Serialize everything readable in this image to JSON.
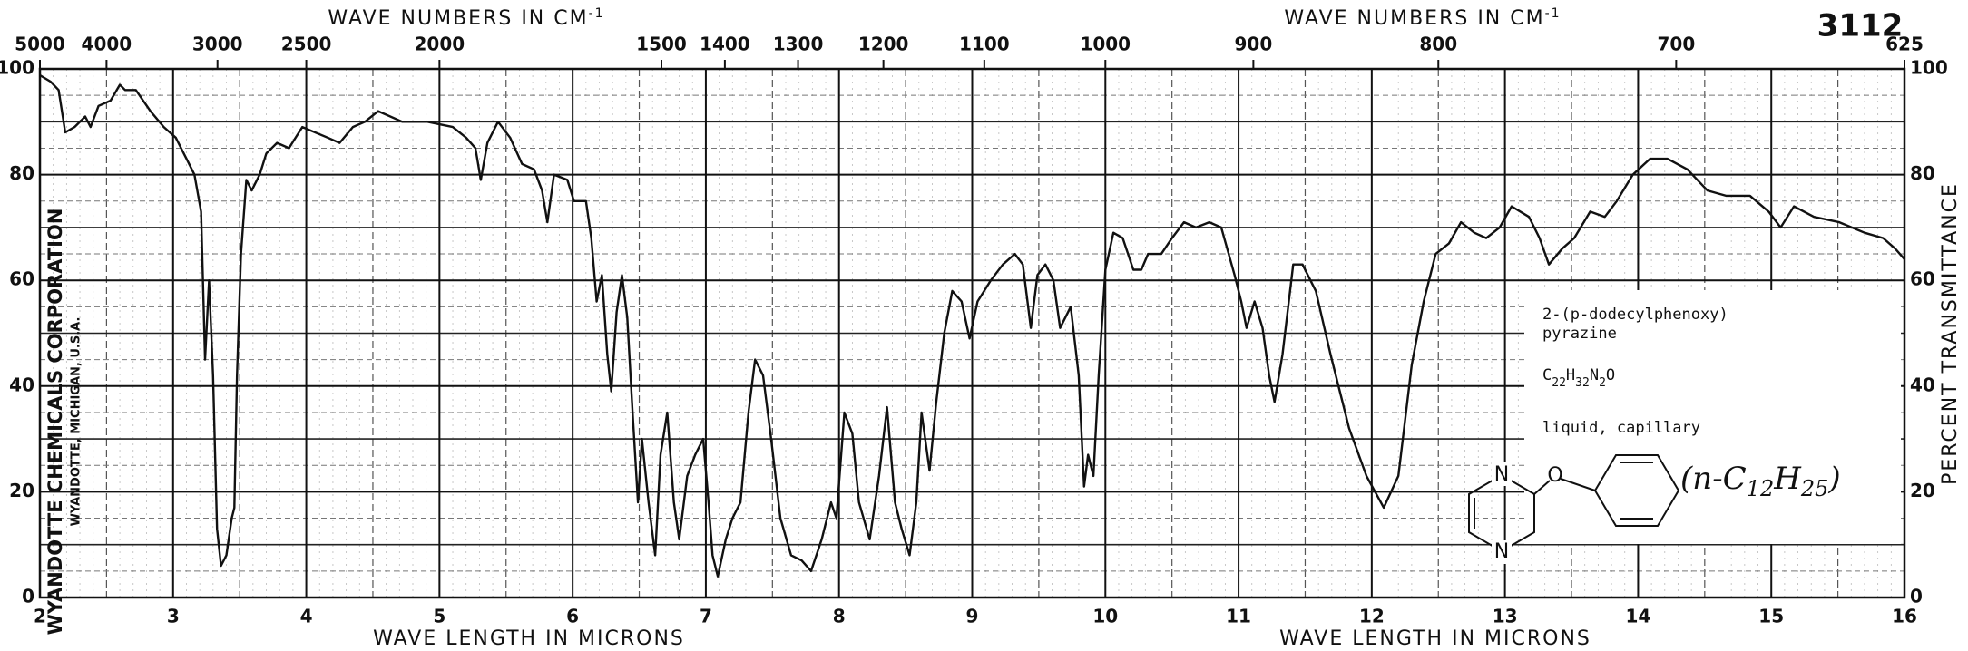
{
  "chart_data": {
    "type": "line",
    "catalog_number": "3112",
    "top_axis_label": {
      "text": "WAVE NUMBERS IN CM",
      "sup": "-1"
    },
    "x_label": "WAVE LENGTH IN MICRONS",
    "y_label": "PERCENT TRANSMITTANCE",
    "publisher": "WYANDOTTE CHEMICALS CORPORATION",
    "publisher_location": "WYANDOTTE, MICHIGAN, U.S.A.",
    "compound": {
      "name_line1": "2-(p-dodecylphenoxy)",
      "name_line2": "pyrazine",
      "formula": [
        "C",
        "22",
        "H",
        "32",
        "N",
        "2",
        "O"
      ],
      "state": "liquid, capillary",
      "structure": {
        "ring_atom_1": "N",
        "ring_atom_2": "N",
        "linker": "O",
        "substituent": [
          "(n-C",
          "12",
          "H",
          "25",
          ")"
        ]
      }
    },
    "xlim": [
      2,
      16
    ],
    "xticks": [
      2,
      3,
      4,
      5,
      6,
      7,
      8,
      9,
      10,
      11,
      12,
      13,
      14,
      15,
      16
    ],
    "ylim": [
      0,
      100
    ],
    "yticks": [
      0,
      20,
      40,
      60,
      80,
      100
    ],
    "wavenumber_ticks": [
      5000,
      4000,
      3000,
      2500,
      2000,
      1500,
      1400,
      1300,
      1200,
      1100,
      1000,
      900,
      800,
      700,
      625
    ],
    "grid": true,
    "color": "#111111",
    "x": [
      2.0,
      2.08,
      2.14,
      2.19,
      2.26,
      2.34,
      2.38,
      2.44,
      2.53,
      2.6,
      2.64,
      2.72,
      2.83,
      2.93,
      3.02,
      3.1,
      3.16,
      3.21,
      3.24,
      3.27,
      3.3,
      3.33,
      3.36,
      3.4,
      3.44,
      3.46,
      3.48,
      3.51,
      3.55,
      3.59,
      3.65,
      3.7,
      3.78,
      3.87,
      3.97,
      4.16,
      4.25,
      4.35,
      4.44,
      4.54,
      4.72,
      4.91,
      5.1,
      5.2,
      5.27,
      5.31,
      5.36,
      5.44,
      5.53,
      5.62,
      5.71,
      5.77,
      5.81,
      5.86,
      5.96,
      6.01,
      6.1,
      6.14,
      6.18,
      6.22,
      6.26,
      6.29,
      6.33,
      6.37,
      6.41,
      6.45,
      6.49,
      6.52,
      6.57,
      6.62,
      6.66,
      6.71,
      6.76,
      6.8,
      6.86,
      6.92,
      6.98,
      7.02,
      7.05,
      7.09,
      7.15,
      7.2,
      7.26,
      7.32,
      7.37,
      7.43,
      7.49,
      7.56,
      7.64,
      7.72,
      7.79,
      7.87,
      7.94,
      7.98,
      8.04,
      8.1,
      8.15,
      8.23,
      8.3,
      8.36,
      8.42,
      8.47,
      8.53,
      8.58,
      8.62,
      8.68,
      8.73,
      8.79,
      8.85,
      8.92,
      8.98,
      9.04,
      9.14,
      9.23,
      9.32,
      9.38,
      9.44,
      9.49,
      9.55,
      9.61,
      9.66,
      9.74,
      9.8,
      9.84,
      9.87,
      9.91,
      9.95,
      10.0,
      10.06,
      10.13,
      10.21,
      10.27,
      10.32,
      10.42,
      10.5,
      10.59,
      10.68,
      10.78,
      10.87,
      10.97,
      11.02,
      11.06,
      11.12,
      11.18,
      11.23,
      11.27,
      11.33,
      11.41,
      11.48,
      11.58,
      11.69,
      11.83,
      11.96,
      12.09,
      12.2,
      12.3,
      12.39,
      12.48,
      12.58,
      12.67,
      12.77,
      12.86,
      12.96,
      13.05,
      13.18,
      13.26,
      13.33,
      13.43,
      13.52,
      13.64,
      13.75,
      13.84,
      13.96,
      14.09,
      14.22,
      14.37,
      14.52,
      14.66,
      14.84,
      14.98,
      15.07,
      15.17,
      15.32,
      15.51,
      15.7,
      15.84,
      15.93,
      16.0
    ],
    "values": [
      98.8,
      97.6,
      96,
      88,
      89,
      91,
      89,
      93,
      94,
      97,
      96,
      96,
      92,
      89,
      87,
      83,
      80,
      73,
      45,
      60,
      42,
      13,
      6,
      8,
      15,
      17,
      42,
      65,
      79,
      77,
      80,
      84,
      86,
      85,
      89,
      87,
      86,
      89,
      90,
      92,
      90,
      90,
      89,
      87,
      85,
      79,
      86,
      90,
      87,
      82,
      81,
      77,
      71,
      80,
      79,
      75,
      75,
      68,
      56,
      61,
      46,
      39,
      54,
      61,
      53,
      35,
      18,
      30,
      18,
      8,
      27,
      35,
      18,
      11,
      23,
      27,
      30,
      18,
      8,
      4,
      11,
      15,
      18,
      35,
      45,
      42,
      30,
      15,
      8,
      7,
      5,
      11,
      18,
      15,
      35,
      31,
      18,
      11,
      23,
      36,
      18,
      13,
      8,
      18,
      35,
      24,
      37,
      50,
      58,
      56,
      49,
      56,
      60,
      63,
      65,
      63,
      51,
      61,
      63,
      60,
      51,
      55,
      42,
      21,
      27,
      23,
      42,
      62,
      69,
      68,
      62,
      62,
      65,
      65,
      68,
      71,
      70,
      71,
      70,
      61,
      56,
      51,
      56,
      51,
      42,
      37,
      46,
      63,
      63,
      58,
      46,
      32,
      23,
      17,
      23,
      44,
      56,
      65,
      67,
      71,
      69,
      68,
      70,
      74,
      72,
      68,
      63,
      66,
      68,
      73,
      72,
      75,
      80,
      83,
      83,
      81,
      77,
      76,
      76,
      73,
      70,
      74,
      72,
      71,
      69,
      68,
      66,
      64
    ]
  }
}
